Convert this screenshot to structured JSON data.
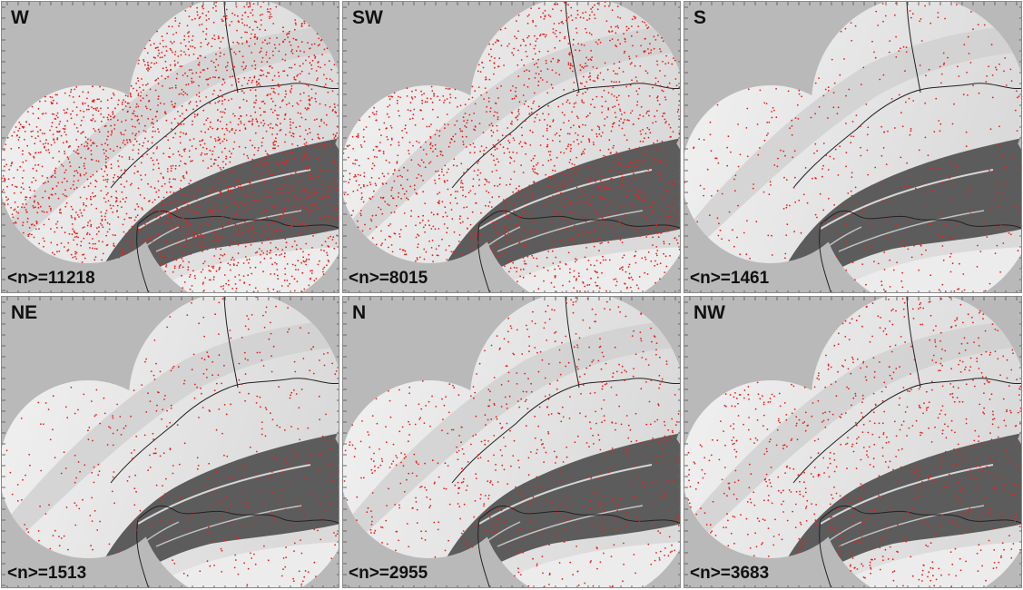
{
  "figure": {
    "panels": [
      {
        "direction": "W",
        "count_text": "<n>=11218",
        "density": 11218
      },
      {
        "direction": "SW",
        "count_text": "<n>=8015",
        "density": 8015
      },
      {
        "direction": "S",
        "count_text": "<n>=1461",
        "density": 1461
      },
      {
        "direction": "NE",
        "count_text": "<n>=1513",
        "density": 1513
      },
      {
        "direction": "N",
        "count_text": "<n>=2955",
        "density": 2955
      },
      {
        "direction": "NW",
        "count_text": "<n>=3683",
        "density": 3683
      }
    ],
    "colors": {
      "background": "#b9b9b9",
      "lowland": "#f2f2f2",
      "mountains": "#5c5c5c",
      "points": "#e8201b",
      "borders": "#222222"
    }
  }
}
